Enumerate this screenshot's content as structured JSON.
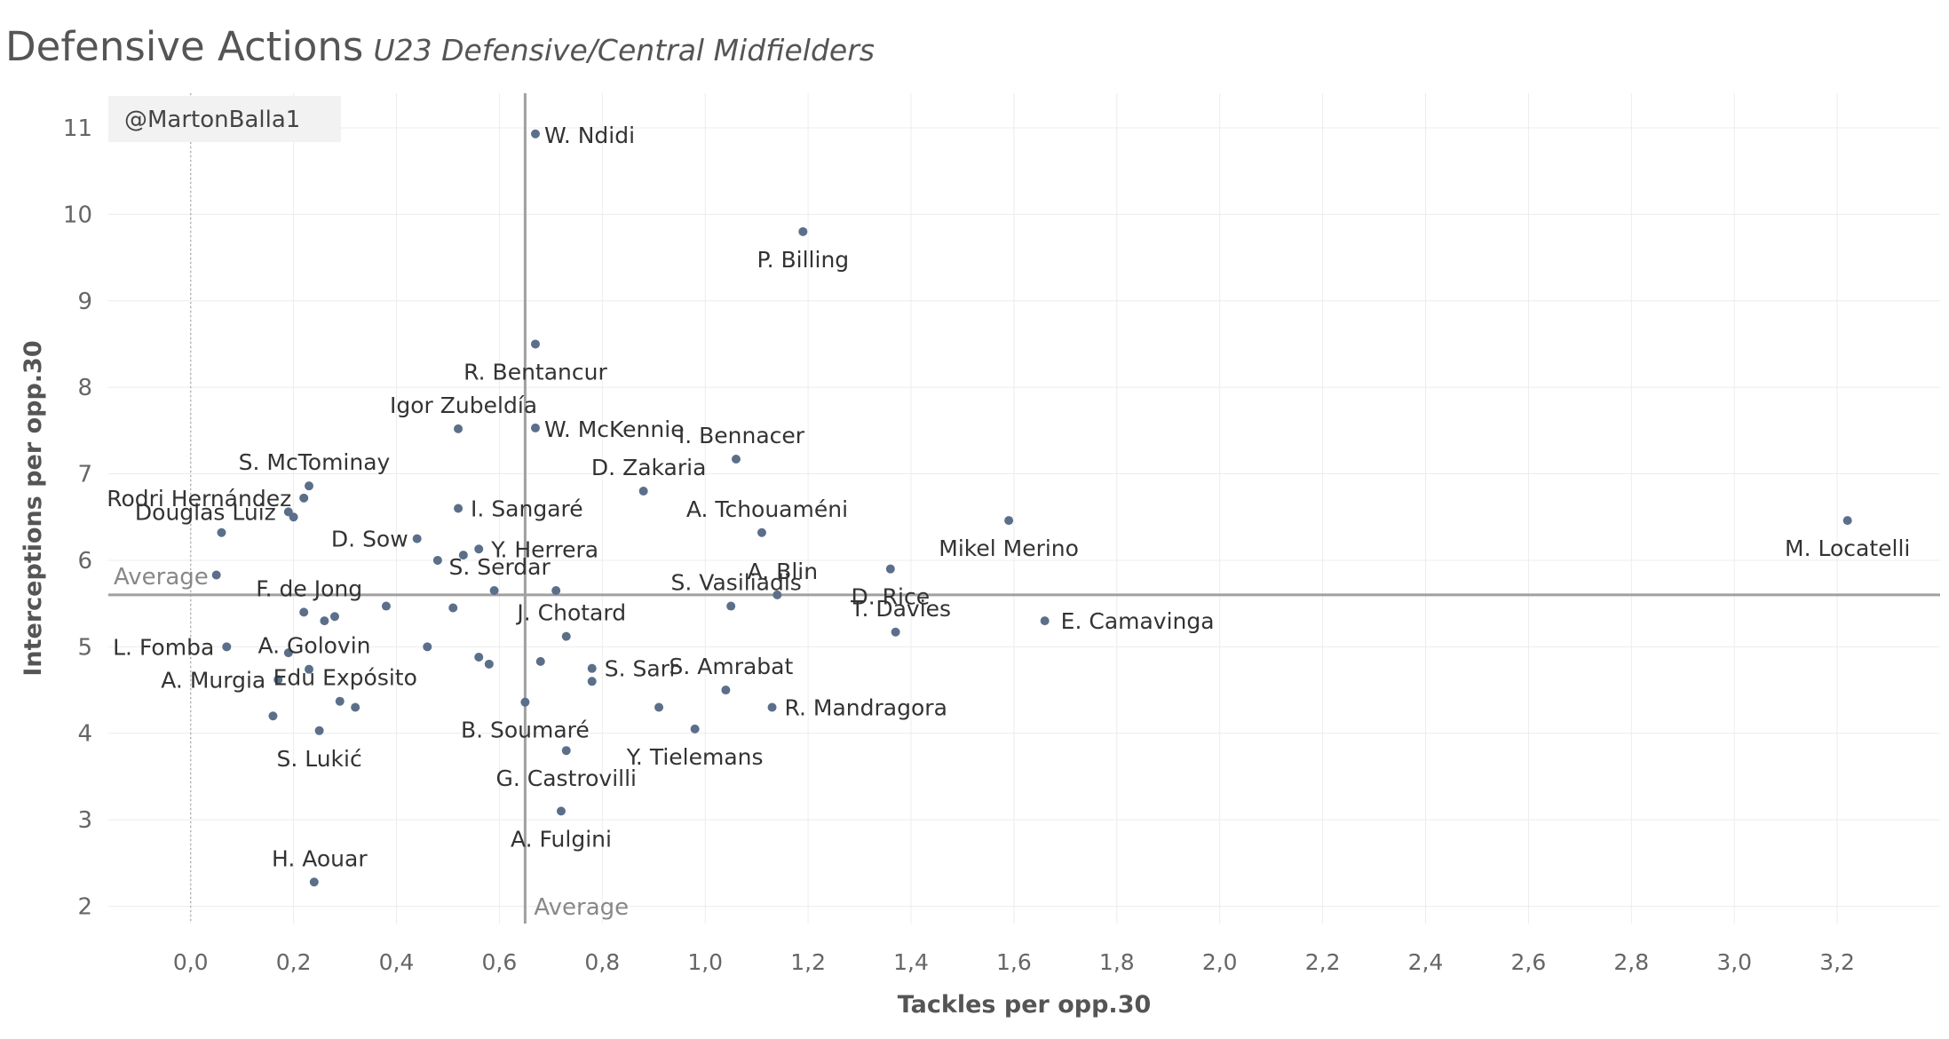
{
  "title": "Defensive Actions",
  "subtitle": "U23 Defensive/Central Midfielders",
  "chart_data": {
    "type": "scatter",
    "title": "Defensive Actions",
    "subtitle": "U23 Defensive/Central Midfielders",
    "xlabel": "Tackles per opp.30",
    "ylabel": "Interceptions per opp.30",
    "xlim": [
      -0.16,
      3.4
    ],
    "ylim": [
      1.8,
      11.4
    ],
    "xticks": [
      "0,0",
      "0,2",
      "0,4",
      "0,6",
      "0,8",
      "1,0",
      "1,2",
      "1,4",
      "1,6",
      "1,8",
      "2,0",
      "2,2",
      "2,4",
      "2,6",
      "2,8",
      "3,0",
      "3,2"
    ],
    "yticks": [
      "2",
      "3",
      "4",
      "5",
      "6",
      "7",
      "8",
      "9",
      "10",
      "11"
    ],
    "grid": true,
    "watermark": "@MartonBalla1",
    "reference_lines": [
      {
        "axis": "x",
        "value": 0.65,
        "label": "Average"
      },
      {
        "axis": "y",
        "value": 5.6,
        "label": "Average"
      }
    ],
    "zero_line_x": 0,
    "point_color": "#5b6f8b",
    "line_color": "#a0a0a0",
    "points": [
      {
        "x": 0.67,
        "y": 10.93,
        "label": "W. Ndidi"
      },
      {
        "x": 1.19,
        "y": 9.8,
        "label": "P. Billing"
      },
      {
        "x": 0.67,
        "y": 8.5,
        "label": "R. Bentancur"
      },
      {
        "x": 0.67,
        "y": 7.53,
        "label": "W. McKennie"
      },
      {
        "x": 0.52,
        "y": 7.52,
        "label": "Igor Zubeldía"
      },
      {
        "x": 1.06,
        "y": 7.17,
        "label": "I. Bennacer"
      },
      {
        "x": 0.23,
        "y": 6.86,
        "label": "S. McTominay"
      },
      {
        "x": 0.22,
        "y": 6.72,
        "label": "Rodri Hernández"
      },
      {
        "x": 0.88,
        "y": 6.8,
        "label": "D. Zakaria"
      },
      {
        "x": 0.19,
        "y": 6.56,
        "label": "Douglas Luiz"
      },
      {
        "x": 0.2,
        "y": 6.5
      },
      {
        "x": 0.52,
        "y": 6.6,
        "label": "I. Sangaré"
      },
      {
        "x": 1.11,
        "y": 6.32,
        "label": "A. Tchouaméni"
      },
      {
        "x": 1.59,
        "y": 6.46,
        "label": "Mikel Merino"
      },
      {
        "x": 3.22,
        "y": 6.46,
        "label": "M. Locatelli"
      },
      {
        "x": 0.06,
        "y": 6.32
      },
      {
        "x": 0.44,
        "y": 6.25,
        "label": "D. Sow"
      },
      {
        "x": 0.56,
        "y": 6.13,
        "label": "Y. Herrera"
      },
      {
        "x": 0.53,
        "y": 6.06
      },
      {
        "x": 0.48,
        "y": 6.0
      },
      {
        "x": 0.05,
        "y": 5.83
      },
      {
        "x": 1.36,
        "y": 5.9,
        "label": "D. Rice"
      },
      {
        "x": 0.59,
        "y": 5.65,
        "label": "S. Serdar"
      },
      {
        "x": 0.71,
        "y": 5.65
      },
      {
        "x": 1.14,
        "y": 5.6,
        "label": "A. Blin"
      },
      {
        "x": 0.38,
        "y": 5.47
      },
      {
        "x": 0.51,
        "y": 5.45
      },
      {
        "x": 1.05,
        "y": 5.47,
        "label": "S. Vasiliadis"
      },
      {
        "x": 0.22,
        "y": 5.4,
        "label": "F. de Jong"
      },
      {
        "x": 0.28,
        "y": 5.35
      },
      {
        "x": 0.26,
        "y": 5.3
      },
      {
        "x": 1.66,
        "y": 5.3,
        "label": "E. Camavinga"
      },
      {
        "x": 1.37,
        "y": 5.17,
        "label": "T. Davies"
      },
      {
        "x": 0.73,
        "y": 5.12,
        "label": "J. Chotard"
      },
      {
        "x": 0.07,
        "y": 5.0,
        "label": "L. Fomba"
      },
      {
        "x": 0.46,
        "y": 5.0
      },
      {
        "x": 0.19,
        "y": 4.93
      },
      {
        "x": 0.56,
        "y": 4.88
      },
      {
        "x": 0.58,
        "y": 4.8
      },
      {
        "x": 0.68,
        "y": 4.83
      },
      {
        "x": 0.78,
        "y": 4.75,
        "label": "S. Sarr"
      },
      {
        "x": 0.23,
        "y": 4.74,
        "label": "A. Golovin"
      },
      {
        "x": 0.78,
        "y": 4.6
      },
      {
        "x": 0.17,
        "y": 4.62,
        "label": "A. Murgia"
      },
      {
        "x": 1.04,
        "y": 4.5,
        "label": "S. Amrabat"
      },
      {
        "x": 0.29,
        "y": 4.37,
        "label": "Edu Expósito"
      },
      {
        "x": 0.32,
        "y": 4.3
      },
      {
        "x": 0.65,
        "y": 4.36,
        "label": "B. Soumaré"
      },
      {
        "x": 0.91,
        "y": 4.3
      },
      {
        "x": 1.13,
        "y": 4.3,
        "label": "R. Mandragora"
      },
      {
        "x": 0.98,
        "y": 4.05,
        "label": "Y. Tielemans"
      },
      {
        "x": 0.16,
        "y": 4.2
      },
      {
        "x": 0.25,
        "y": 4.03,
        "label": "S. Lukić"
      },
      {
        "x": 0.73,
        "y": 3.8,
        "label": "G. Castrovilli"
      },
      {
        "x": 0.72,
        "y": 3.1,
        "label": "A. Fulgini"
      },
      {
        "x": 0.24,
        "y": 2.28,
        "label": "H. Aouar"
      }
    ]
  }
}
